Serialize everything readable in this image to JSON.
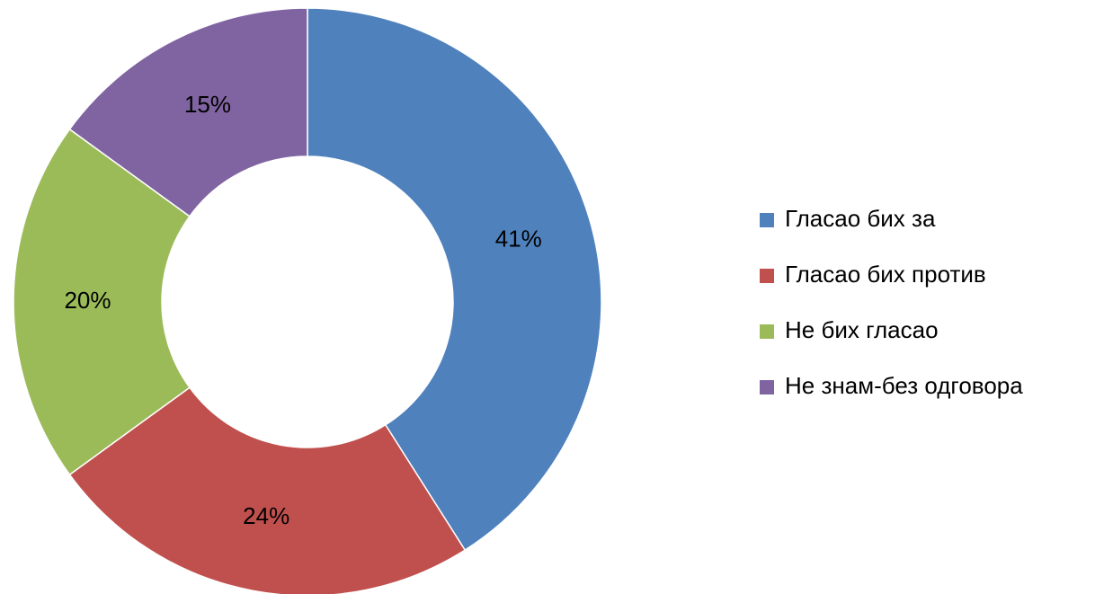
{
  "chart_data": {
    "type": "donut",
    "categories": [
      "Гласао бих за",
      "Гласао бих против",
      "Не бих гласао",
      "Не знам-без одговора"
    ],
    "values": [
      41,
      24,
      20,
      15
    ],
    "value_labels": [
      "41%",
      "24%",
      "20%",
      "15%"
    ],
    "colors": [
      "#4f81bd",
      "#c0504d",
      "#9bbb59",
      "#8064a2"
    ],
    "legend": "right"
  }
}
